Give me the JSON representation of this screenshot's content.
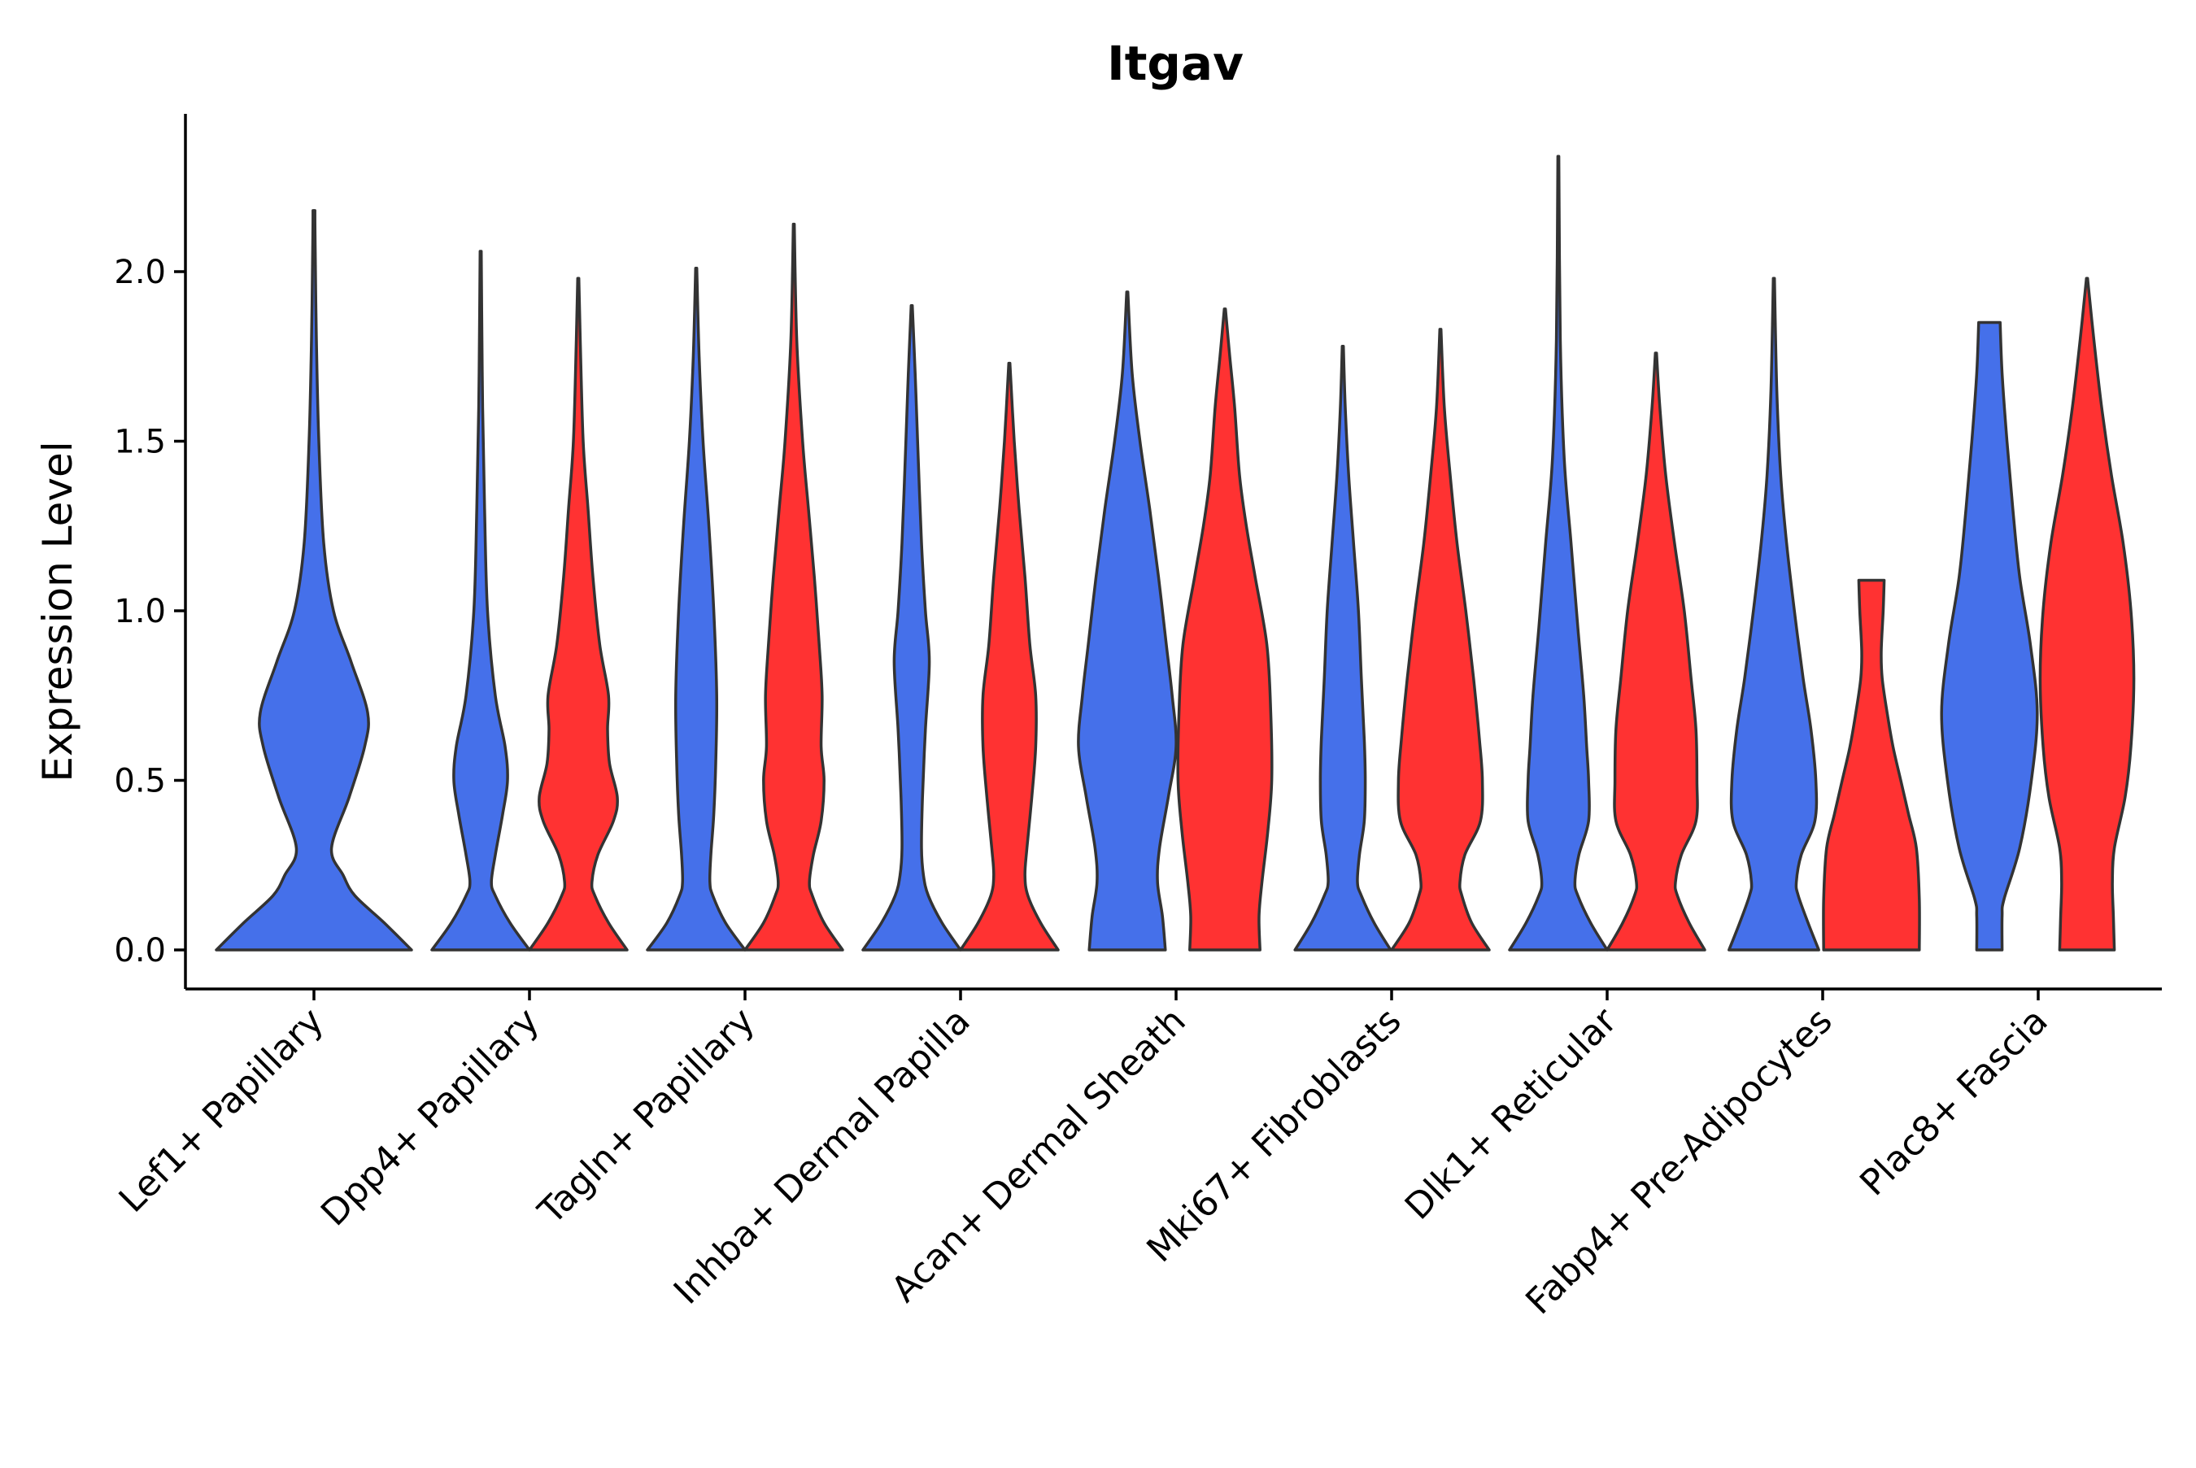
{
  "chart_data": {
    "type": "violin",
    "title": "Itgav",
    "xlabel": "",
    "ylabel": "Expression Level",
    "ylim": [
      -0.12,
      2.45
    ],
    "yticks": [
      0.0,
      0.5,
      1.0,
      1.5,
      2.0
    ],
    "ytick_labels": [
      "0.0",
      "0.5",
      "1.0",
      "1.5",
      "2.0"
    ],
    "categories": [
      "Lef1+ Papillary",
      "Dpp4+ Papillary",
      "Tagln+ Papillary",
      "Inhba+ Dermal Papilla",
      "Acan+ Dermal Sheath",
      "Mki67+ Fibroblasts",
      "Dlk1+ Reticular",
      "Fabp4+ Pre-Adipocytes",
      "Plac8+ Fascia"
    ],
    "series_colors": {
      "blue": "#4570ea",
      "red": "#ff3232"
    },
    "violins": [
      {
        "category": "Lef1+ Papillary",
        "color": "blue",
        "offset": 0,
        "max": 2.18,
        "profile": [
          [
            0,
            1.0
          ],
          [
            0.08,
            0.72
          ],
          [
            0.16,
            0.42
          ],
          [
            0.22,
            0.3
          ],
          [
            0.3,
            0.18
          ],
          [
            0.45,
            0.36
          ],
          [
            0.6,
            0.52
          ],
          [
            0.7,
            0.55
          ],
          [
            0.85,
            0.38
          ],
          [
            1.0,
            0.2
          ],
          [
            1.2,
            0.1
          ],
          [
            1.5,
            0.05
          ],
          [
            1.8,
            0.025
          ],
          [
            2.1,
            0.012
          ],
          [
            2.18,
            0.01
          ]
        ]
      },
      {
        "category": "Dpp4+ Papillary",
        "color": "blue",
        "offset": -0.5,
        "max": 2.06,
        "profile": [
          [
            0,
            1.0
          ],
          [
            0.08,
            0.6
          ],
          [
            0.16,
            0.3
          ],
          [
            0.2,
            0.22
          ],
          [
            0.28,
            0.3
          ],
          [
            0.4,
            0.45
          ],
          [
            0.5,
            0.55
          ],
          [
            0.6,
            0.5
          ],
          [
            0.75,
            0.3
          ],
          [
            1.0,
            0.14
          ],
          [
            1.3,
            0.08
          ],
          [
            1.6,
            0.04
          ],
          [
            1.9,
            0.02
          ],
          [
            2.06,
            0.012
          ]
        ]
      },
      {
        "category": "Dpp4+ Papillary",
        "color": "red",
        "offset": 0.5,
        "max": 1.98,
        "profile": [
          [
            0,
            1.0
          ],
          [
            0.08,
            0.62
          ],
          [
            0.16,
            0.34
          ],
          [
            0.2,
            0.28
          ],
          [
            0.28,
            0.4
          ],
          [
            0.38,
            0.72
          ],
          [
            0.45,
            0.8
          ],
          [
            0.55,
            0.64
          ],
          [
            0.65,
            0.6
          ],
          [
            0.75,
            0.62
          ],
          [
            0.9,
            0.44
          ],
          [
            1.1,
            0.3
          ],
          [
            1.3,
            0.2
          ],
          [
            1.5,
            0.1
          ],
          [
            1.8,
            0.04
          ],
          [
            1.98,
            0.012
          ]
        ]
      },
      {
        "category": "Tagln+ Papillary",
        "color": "blue",
        "offset": -0.5,
        "max": 2.01,
        "profile": [
          [
            0,
            1.0
          ],
          [
            0.08,
            0.6
          ],
          [
            0.16,
            0.34
          ],
          [
            0.2,
            0.28
          ],
          [
            0.28,
            0.3
          ],
          [
            0.4,
            0.36
          ],
          [
            0.55,
            0.4
          ],
          [
            0.75,
            0.42
          ],
          [
            1.0,
            0.36
          ],
          [
            1.25,
            0.26
          ],
          [
            1.5,
            0.14
          ],
          [
            1.75,
            0.06
          ],
          [
            2.01,
            0.012
          ]
        ]
      },
      {
        "category": "Tagln+ Papillary",
        "color": "red",
        "offset": 0.5,
        "max": 2.14,
        "profile": [
          [
            0,
            1.0
          ],
          [
            0.08,
            0.62
          ],
          [
            0.16,
            0.38
          ],
          [
            0.2,
            0.32
          ],
          [
            0.28,
            0.4
          ],
          [
            0.38,
            0.56
          ],
          [
            0.5,
            0.62
          ],
          [
            0.6,
            0.56
          ],
          [
            0.75,
            0.58
          ],
          [
            0.9,
            0.52
          ],
          [
            1.1,
            0.42
          ],
          [
            1.3,
            0.3
          ],
          [
            1.5,
            0.18
          ],
          [
            1.8,
            0.06
          ],
          [
            2.14,
            0.01
          ]
        ]
      },
      {
        "category": "Inhba+ Dermal Papilla",
        "color": "blue",
        "offset": -0.5,
        "max": 1.9,
        "profile": [
          [
            0,
            1.0
          ],
          [
            0.08,
            0.62
          ],
          [
            0.16,
            0.34
          ],
          [
            0.22,
            0.24
          ],
          [
            0.3,
            0.2
          ],
          [
            0.45,
            0.22
          ],
          [
            0.65,
            0.28
          ],
          [
            0.85,
            0.36
          ],
          [
            1.0,
            0.28
          ],
          [
            1.2,
            0.2
          ],
          [
            1.5,
            0.12
          ],
          [
            1.7,
            0.07
          ],
          [
            1.9,
            0.012
          ]
        ]
      },
      {
        "category": "Inhba+ Dermal Papilla",
        "color": "red",
        "offset": 0.5,
        "max": 1.73,
        "profile": [
          [
            0,
            1.0
          ],
          [
            0.08,
            0.64
          ],
          [
            0.16,
            0.38
          ],
          [
            0.22,
            0.32
          ],
          [
            0.3,
            0.36
          ],
          [
            0.45,
            0.46
          ],
          [
            0.6,
            0.54
          ],
          [
            0.75,
            0.54
          ],
          [
            0.9,
            0.42
          ],
          [
            1.1,
            0.32
          ],
          [
            1.3,
            0.2
          ],
          [
            1.5,
            0.1
          ],
          [
            1.73,
            0.012
          ]
        ]
      },
      {
        "category": "Acan+ Dermal Sheath",
        "color": "blue",
        "offset": -0.5,
        "max": 1.94,
        "profile": [
          [
            0,
            0.78
          ],
          [
            0.1,
            0.72
          ],
          [
            0.2,
            0.62
          ],
          [
            0.3,
            0.66
          ],
          [
            0.45,
            0.84
          ],
          [
            0.6,
            1.0
          ],
          [
            0.75,
            0.92
          ],
          [
            0.9,
            0.8
          ],
          [
            1.1,
            0.64
          ],
          [
            1.3,
            0.46
          ],
          [
            1.5,
            0.26
          ],
          [
            1.7,
            0.1
          ],
          [
            1.94,
            0.012
          ]
        ]
      },
      {
        "category": "Acan+ Dermal Sheath",
        "color": "red",
        "offset": 0.5,
        "max": 1.89,
        "profile": [
          [
            0,
            0.72
          ],
          [
            0.1,
            0.7
          ],
          [
            0.2,
            0.76
          ],
          [
            0.35,
            0.88
          ],
          [
            0.5,
            0.96
          ],
          [
            0.7,
            0.94
          ],
          [
            0.9,
            0.86
          ],
          [
            1.1,
            0.62
          ],
          [
            1.25,
            0.44
          ],
          [
            1.4,
            0.3
          ],
          [
            1.6,
            0.2
          ],
          [
            1.75,
            0.1
          ],
          [
            1.89,
            0.012
          ]
        ]
      },
      {
        "category": "Mki67+ Fibroblasts",
        "color": "blue",
        "offset": -0.5,
        "max": 1.78,
        "profile": [
          [
            0,
            0.98
          ],
          [
            0.08,
            0.64
          ],
          [
            0.16,
            0.38
          ],
          [
            0.2,
            0.3
          ],
          [
            0.28,
            0.34
          ],
          [
            0.38,
            0.44
          ],
          [
            0.5,
            0.46
          ],
          [
            0.62,
            0.44
          ],
          [
            0.8,
            0.38
          ],
          [
            1.0,
            0.32
          ],
          [
            1.2,
            0.22
          ],
          [
            1.4,
            0.12
          ],
          [
            1.6,
            0.05
          ],
          [
            1.78,
            0.012
          ]
        ]
      },
      {
        "category": "Mki67+ Fibroblasts",
        "color": "red",
        "offset": 0.5,
        "max": 1.83,
        "profile": [
          [
            0,
            1.0
          ],
          [
            0.08,
            0.64
          ],
          [
            0.16,
            0.44
          ],
          [
            0.2,
            0.4
          ],
          [
            0.28,
            0.5
          ],
          [
            0.38,
            0.82
          ],
          [
            0.5,
            0.86
          ],
          [
            0.62,
            0.8
          ],
          [
            0.8,
            0.68
          ],
          [
            1.0,
            0.52
          ],
          [
            1.2,
            0.34
          ],
          [
            1.4,
            0.2
          ],
          [
            1.6,
            0.08
          ],
          [
            1.83,
            0.012
          ]
        ]
      },
      {
        "category": "Dlk1+ Reticular",
        "color": "blue",
        "offset": -0.5,
        "max": 2.34,
        "profile": [
          [
            0,
            1.0
          ],
          [
            0.08,
            0.66
          ],
          [
            0.16,
            0.4
          ],
          [
            0.2,
            0.34
          ],
          [
            0.28,
            0.42
          ],
          [
            0.38,
            0.62
          ],
          [
            0.5,
            0.62
          ],
          [
            0.6,
            0.58
          ],
          [
            0.75,
            0.52
          ],
          [
            0.95,
            0.4
          ],
          [
            1.2,
            0.26
          ],
          [
            1.45,
            0.12
          ],
          [
            1.8,
            0.04
          ],
          [
            2.34,
            0.01
          ]
        ]
      },
      {
        "category": "Dlk1+ Reticular",
        "color": "red",
        "offset": 0.5,
        "max": 1.76,
        "profile": [
          [
            0,
            1.0
          ],
          [
            0.08,
            0.68
          ],
          [
            0.16,
            0.44
          ],
          [
            0.2,
            0.4
          ],
          [
            0.28,
            0.52
          ],
          [
            0.38,
            0.82
          ],
          [
            0.5,
            0.84
          ],
          [
            0.65,
            0.82
          ],
          [
            0.8,
            0.72
          ],
          [
            1.0,
            0.58
          ],
          [
            1.2,
            0.38
          ],
          [
            1.4,
            0.2
          ],
          [
            1.6,
            0.08
          ],
          [
            1.76,
            0.012
          ]
        ]
      },
      {
        "category": "Fabp4+ Pre-Adipocytes",
        "color": "blue",
        "offset": -0.5,
        "max": 1.98,
        "profile": [
          [
            0,
            0.92
          ],
          [
            0.08,
            0.7
          ],
          [
            0.16,
            0.5
          ],
          [
            0.2,
            0.46
          ],
          [
            0.28,
            0.56
          ],
          [
            0.38,
            0.84
          ],
          [
            0.5,
            0.86
          ],
          [
            0.65,
            0.76
          ],
          [
            0.8,
            0.6
          ],
          [
            1.0,
            0.42
          ],
          [
            1.2,
            0.26
          ],
          [
            1.4,
            0.14
          ],
          [
            1.65,
            0.06
          ],
          [
            1.98,
            0.012
          ]
        ]
      },
      {
        "category": "Fabp4+ Pre-Adipocytes",
        "color": "red",
        "offset": 0.5,
        "max": 1.09,
        "profile": [
          [
            0,
            0.98
          ],
          [
            0.15,
            0.98
          ],
          [
            0.3,
            0.92
          ],
          [
            0.4,
            0.76
          ],
          [
            0.5,
            0.6
          ],
          [
            0.6,
            0.44
          ],
          [
            0.7,
            0.32
          ],
          [
            0.8,
            0.22
          ],
          [
            0.88,
            0.2
          ],
          [
            1.0,
            0.24
          ],
          [
            1.09,
            0.26
          ]
        ]
      },
      {
        "category": "Plac8+ Fascia",
        "color": "blue",
        "offset": -0.5,
        "max": 1.85,
        "profile": [
          [
            0,
            0.26
          ],
          [
            0.1,
            0.26
          ],
          [
            0.15,
            0.3
          ],
          [
            0.3,
            0.62
          ],
          [
            0.5,
            0.86
          ],
          [
            0.7,
            0.98
          ],
          [
            0.9,
            0.84
          ],
          [
            1.1,
            0.62
          ],
          [
            1.3,
            0.48
          ],
          [
            1.5,
            0.36
          ],
          [
            1.7,
            0.26
          ],
          [
            1.85,
            0.22
          ]
        ]
      },
      {
        "category": "Plac8+ Fascia",
        "color": "red",
        "offset": 0.5,
        "max": 1.98,
        "profile": [
          [
            0,
            0.56
          ],
          [
            0.1,
            0.54
          ],
          [
            0.2,
            0.52
          ],
          [
            0.3,
            0.56
          ],
          [
            0.45,
            0.78
          ],
          [
            0.6,
            0.9
          ],
          [
            0.8,
            0.96
          ],
          [
            1.0,
            0.9
          ],
          [
            1.2,
            0.74
          ],
          [
            1.4,
            0.5
          ],
          [
            1.6,
            0.3
          ],
          [
            1.8,
            0.14
          ],
          [
            1.98,
            0.012
          ]
        ]
      }
    ]
  }
}
